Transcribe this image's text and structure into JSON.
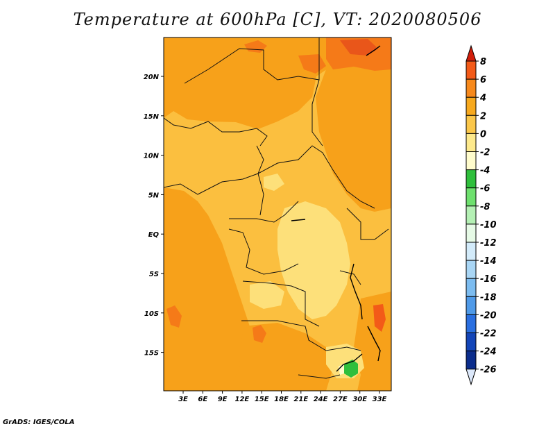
{
  "title": "Temperature at 600hPa [C], VT: 2020080506",
  "footer": "GrADS: IGES/COLA",
  "map": {
    "type": "filled-contour",
    "variable": "Temperature",
    "level": "600hPa",
    "units": "C",
    "valid_time": "2020080506",
    "lon_ticks": [
      "3E",
      "6E",
      "9E",
      "12E",
      "15E",
      "18E",
      "21E",
      "24E",
      "27E",
      "30E",
      "33E"
    ],
    "lat_ticks": [
      "20N",
      "15N",
      "10N",
      "5N",
      "EQ",
      "5S",
      "10S",
      "15S"
    ],
    "regions": [
      {
        "name": "sahara-north",
        "value_range": [
          2,
          4
        ],
        "color": "#f7a11a"
      },
      {
        "name": "east-africa",
        "value_range": [
          2,
          4
        ],
        "color": "#f7a11a"
      },
      {
        "name": "congo-basin",
        "value_range": [
          0,
          2
        ],
        "color": "#fbbf3f"
      },
      {
        "name": "central-low",
        "value_range": [
          -2,
          0
        ],
        "color": "#fde07a"
      },
      {
        "name": "zambia-cool-spot",
        "value_range": [
          -6,
          -4
        ],
        "color": "#2fbf3c"
      },
      {
        "name": "warm-patches",
        "value_range": [
          4,
          6
        ],
        "color": "#f57a18"
      }
    ]
  },
  "colorbar": {
    "labels": [
      "8",
      "6",
      "4",
      "2",
      "0",
      "-2",
      "-4",
      "-6",
      "-8",
      "-10",
      "-12",
      "-14",
      "-16",
      "-18",
      "-20",
      "-22",
      "-24",
      "-26"
    ],
    "colors": [
      "#e02a0e",
      "#f35a18",
      "#f7891c",
      "#f7a91e",
      "#fbc74a",
      "#fde98c",
      "#fffccc",
      "#2fbf3c",
      "#6ee06e",
      "#b4f0b4",
      "#e6fae6",
      "#d3ebfa",
      "#a9d6f5",
      "#7cbcf0",
      "#4f9ae8",
      "#2a6fe0",
      "#1345b8",
      "#0b2d8c",
      "#071d6a"
    ],
    "top_color": "#d11e0a",
    "bottom_color": "#dce8fa"
  }
}
